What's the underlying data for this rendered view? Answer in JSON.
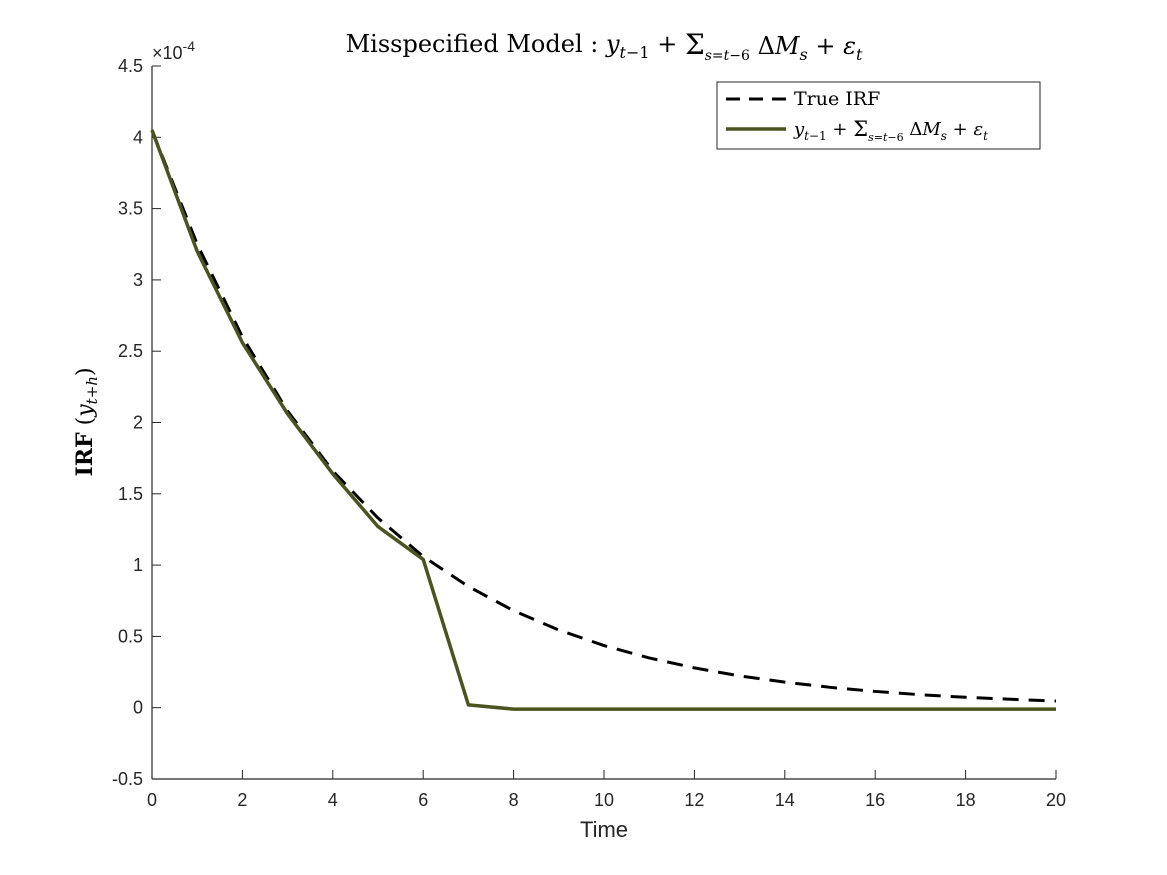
{
  "chart_data": {
    "type": "line",
    "title": {
      "prefix": "Misspecified Model : ",
      "formula": "y_{t−1} + Σ_{s=t−6}^{t} ΔM_s + ε_t"
    },
    "xlabel": "Time",
    "ylabel": {
      "bold": "IRF",
      "math": "(y_{t+h})"
    },
    "y_exponent_label": "×10^-4",
    "xlim": [
      0,
      20
    ],
    "ylim": [
      -0.5,
      4.5
    ],
    "x_ticks": [
      0,
      2,
      4,
      6,
      8,
      10,
      12,
      14,
      16,
      18,
      20
    ],
    "y_ticks": [
      -0.5,
      0,
      0.5,
      1,
      1.5,
      2,
      2.5,
      3,
      3.5,
      4,
      4.5
    ],
    "y_tick_labels": [
      "-0.5",
      "0",
      "0.5",
      "1",
      "1.5",
      "2",
      "2.5",
      "3",
      "3.5",
      "4",
      "4.5"
    ],
    "grid": false,
    "legend_position": "top-right",
    "x": [
      0,
      1,
      2,
      3,
      4,
      5,
      6,
      7,
      8,
      9,
      10,
      11,
      12,
      13,
      14,
      15,
      16,
      17,
      18,
      19,
      20
    ],
    "series": [
      {
        "name": "True IRF",
        "style": "dashed",
        "color": "#000000",
        "values": [
          4.05,
          3.25,
          2.6,
          2.08,
          1.66,
          1.33,
          1.06,
          0.85,
          0.68,
          0.545,
          0.436,
          0.349,
          0.279,
          0.223,
          0.179,
          0.143,
          0.114,
          0.091,
          0.073,
          0.059,
          0.047
        ]
      },
      {
        "name": "y_{t−1} + Σ_{s=t−6}^{t} ΔM_s + ε_t",
        "style": "solid",
        "color": "#4b5320",
        "values": [
          4.05,
          3.2,
          2.56,
          2.06,
          1.64,
          1.27,
          1.04,
          0.02,
          -0.01,
          -0.01,
          -0.01,
          -0.01,
          -0.01,
          -0.01,
          -0.01,
          -0.01,
          -0.01,
          -0.01,
          -0.01,
          -0.01,
          -0.01
        ]
      }
    ]
  }
}
